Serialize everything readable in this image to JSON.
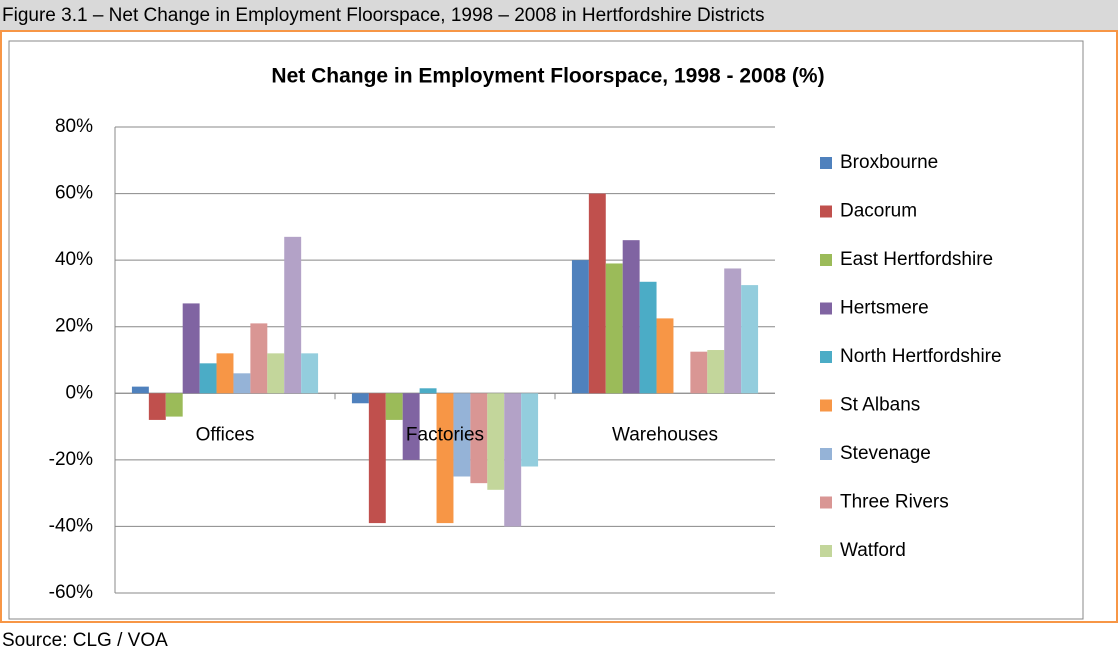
{
  "figure_title": "Figure 3.1 – Net Change in Employment Floorspace, 1998 – 2008 in Hertfordshire Districts",
  "source": "Source: CLG / VOA",
  "chart_data": {
    "type": "bar",
    "title": "Net Change in Employment Floorspace, 1998 - 2008 (%)",
    "categories": [
      "Offices",
      "Factories",
      "Warehouses"
    ],
    "series": [
      {
        "name": "Broxbourne",
        "color": "#4f81bd",
        "values": [
          2,
          -3,
          40
        ]
      },
      {
        "name": "Dacorum",
        "color": "#c0504d",
        "values": [
          -8,
          -39,
          60
        ]
      },
      {
        "name": "East Hertfordshire",
        "color": "#9bbb59",
        "values": [
          -7,
          -8,
          39
        ]
      },
      {
        "name": "Hertsmere",
        "color": "#8064a2",
        "values": [
          27,
          -20,
          46
        ]
      },
      {
        "name": "North Hertfordshire",
        "color": "#4bacc6",
        "values": [
          9,
          1.5,
          33.5
        ]
      },
      {
        "name": "St Albans",
        "color": "#f79646",
        "values": [
          12,
          -39,
          22.5
        ]
      },
      {
        "name": "Stevenage",
        "color": "#95b3d7",
        "values": [
          6,
          -25,
          0
        ]
      },
      {
        "name": "Three Rivers",
        "color": "#d99694",
        "values": [
          21,
          -27,
          12.5
        ]
      },
      {
        "name": "Watford",
        "color": "#c3d69b",
        "values": [
          12,
          -29,
          13
        ]
      },
      {
        "name": null,
        "color": "#b3a2c7",
        "values": [
          47,
          -40,
          37.5
        ]
      },
      {
        "name": null,
        "color": "#93cddd",
        "values": [
          12,
          -22,
          32.5
        ]
      }
    ],
    "ylim": [
      -60,
      80
    ],
    "yticks": [
      {
        "value": -60,
        "label": "-60%"
      },
      {
        "value": -40,
        "label": "-40%"
      },
      {
        "value": -20,
        "label": "-20%"
      },
      {
        "value": 0,
        "label": "0%"
      },
      {
        "value": 20,
        "label": "20%"
      },
      {
        "value": 40,
        "label": "40%"
      },
      {
        "value": 60,
        "label": "60%"
      },
      {
        "value": 80,
        "label": "80%"
      }
    ],
    "grid": true,
    "legend": "right"
  }
}
